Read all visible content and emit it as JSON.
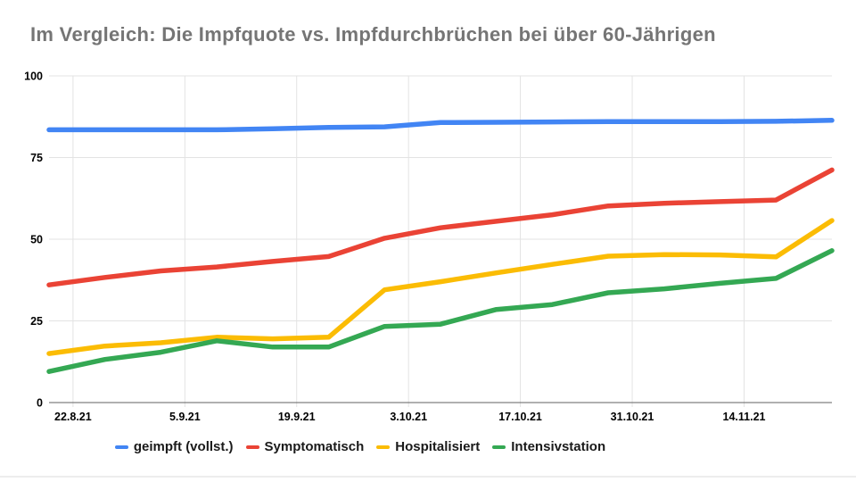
{
  "title": "Im Vergleich: Die Impfquote vs. Impfdurchbrüchen bei über 60-Jährigen",
  "colors": {
    "title": "#757575",
    "gridline": "#e3e3e3",
    "axis_line": "#616161",
    "tick_label": "#000000",
    "legend_text": "#1a1a1a",
    "background": "#ffffff"
  },
  "chart_data": {
    "type": "line",
    "title": "Im Vergleich: Die Impfquote vs. Impfdurchbrüchen bei über 60-Jährigen",
    "xlabel": "",
    "ylabel": "",
    "ylim": [
      0,
      100
    ],
    "y_ticks": [
      0,
      25,
      50,
      75,
      100
    ],
    "grid": true,
    "legend_position": "bottom",
    "x_tick_labels": [
      "22.8.21",
      "5.9.21",
      "19.9.21",
      "3.10.21",
      "17.10.21",
      "31.10.21",
      "14.11.21"
    ],
    "x_tick_positions": [
      0.0306,
      0.1735,
      0.3163,
      0.4592,
      0.602,
      0.7449,
      0.8878
    ],
    "series": [
      {
        "name": "geimpft (vollst.)",
        "color": "#4285F4",
        "values": [
          83.5,
          83.5,
          83.5,
          83.5,
          83.8,
          84.2,
          84.4,
          85.7,
          85.8,
          85.9,
          86.0,
          86.0,
          86.0,
          86.1,
          86.4
        ]
      },
      {
        "name": "Symptomatisch",
        "color": "#EA4335",
        "values": [
          36.0,
          38.3,
          40.3,
          41.5,
          43.2,
          44.7,
          50.3,
          53.5,
          55.5,
          57.5,
          60.2,
          61.0,
          61.5,
          62.0,
          71.2
        ]
      },
      {
        "name": "Hospitalisiert",
        "color": "#FBBC04",
        "values": [
          15.0,
          17.3,
          18.3,
          20.0,
          19.5,
          20.0,
          34.5,
          37.0,
          39.7,
          42.3,
          44.8,
          45.3,
          45.2,
          44.6,
          55.7
        ]
      },
      {
        "name": "Intensivstation",
        "color": "#34A853",
        "values": [
          9.5,
          13.2,
          15.4,
          18.9,
          17.0,
          17.0,
          23.3,
          24.0,
          28.5,
          30.0,
          33.6,
          34.8,
          36.5,
          38.0,
          46.5
        ]
      }
    ]
  }
}
